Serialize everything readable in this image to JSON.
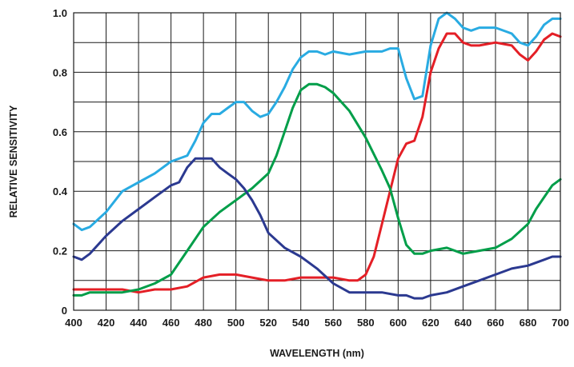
{
  "chart_data": {
    "type": "line",
    "title": "",
    "xlabel": "WAVELENGTH (nm)",
    "ylabel": "RELATIVE SENSITIVITY",
    "xlim": [
      400,
      700
    ],
    "ylim": [
      0,
      1.0
    ],
    "x_ticks": [
      "400",
      "420",
      "440",
      "460",
      "480",
      "500",
      "520",
      "540",
      "560",
      "580",
      "600",
      "620",
      "640",
      "660",
      "680",
      "700"
    ],
    "y_ticks": [
      "0",
      "0.2",
      "0.4",
      "0.6",
      "0.8",
      "1.0"
    ],
    "grid": true,
    "series": [
      {
        "color": "#29abe2",
        "x": [
          400,
          405,
          410,
          420,
          430,
          440,
          450,
          460,
          470,
          475,
          480,
          485,
          490,
          495,
          500,
          505,
          510,
          515,
          520,
          525,
          530,
          535,
          540,
          545,
          550,
          555,
          560,
          570,
          580,
          590,
          595,
          600,
          605,
          610,
          615,
          620,
          625,
          630,
          635,
          640,
          645,
          650,
          660,
          670,
          675,
          680,
          685,
          690,
          695,
          700
        ],
        "y": [
          0.29,
          0.27,
          0.28,
          0.33,
          0.4,
          0.43,
          0.46,
          0.5,
          0.52,
          0.57,
          0.63,
          0.66,
          0.66,
          0.68,
          0.7,
          0.7,
          0.67,
          0.65,
          0.66,
          0.7,
          0.75,
          0.81,
          0.85,
          0.87,
          0.87,
          0.86,
          0.87,
          0.86,
          0.87,
          0.87,
          0.88,
          0.88,
          0.78,
          0.71,
          0.72,
          0.89,
          0.98,
          1.0,
          0.98,
          0.95,
          0.94,
          0.95,
          0.95,
          0.93,
          0.9,
          0.89,
          0.92,
          0.96,
          0.98,
          0.98
        ]
      },
      {
        "color": "#e41f26",
        "x": [
          400,
          410,
          420,
          430,
          440,
          450,
          460,
          470,
          480,
          490,
          500,
          510,
          520,
          530,
          540,
          550,
          560,
          570,
          575,
          580,
          585,
          590,
          595,
          600,
          605,
          610,
          615,
          620,
          625,
          630,
          635,
          640,
          645,
          650,
          660,
          670,
          675,
          680,
          685,
          690,
          695,
          700
        ],
        "y": [
          0.07,
          0.07,
          0.07,
          0.07,
          0.06,
          0.07,
          0.07,
          0.08,
          0.11,
          0.12,
          0.12,
          0.11,
          0.1,
          0.1,
          0.11,
          0.11,
          0.11,
          0.1,
          0.1,
          0.12,
          0.18,
          0.29,
          0.4,
          0.51,
          0.56,
          0.57,
          0.65,
          0.8,
          0.88,
          0.93,
          0.93,
          0.9,
          0.89,
          0.89,
          0.9,
          0.89,
          0.86,
          0.84,
          0.87,
          0.91,
          0.93,
          0.92
        ]
      },
      {
        "color": "#009e49",
        "x": [
          400,
          405,
          410,
          420,
          430,
          440,
          450,
          460,
          470,
          480,
          490,
          500,
          510,
          520,
          525,
          530,
          535,
          540,
          545,
          550,
          555,
          560,
          570,
          580,
          590,
          595,
          600,
          605,
          610,
          615,
          620,
          630,
          640,
          650,
          660,
          670,
          680,
          685,
          690,
          695,
          700
        ],
        "y": [
          0.05,
          0.05,
          0.06,
          0.06,
          0.06,
          0.07,
          0.09,
          0.12,
          0.2,
          0.28,
          0.33,
          0.37,
          0.41,
          0.46,
          0.52,
          0.6,
          0.68,
          0.74,
          0.76,
          0.76,
          0.75,
          0.73,
          0.67,
          0.58,
          0.47,
          0.41,
          0.31,
          0.22,
          0.19,
          0.19,
          0.2,
          0.21,
          0.19,
          0.2,
          0.21,
          0.24,
          0.29,
          0.34,
          0.38,
          0.42,
          0.44
        ]
      },
      {
        "color": "#2b3990",
        "x": [
          400,
          405,
          410,
          420,
          430,
          440,
          450,
          460,
          465,
          470,
          475,
          480,
          485,
          490,
          495,
          500,
          505,
          510,
          515,
          520,
          530,
          540,
          550,
          560,
          570,
          580,
          590,
          600,
          605,
          610,
          615,
          620,
          630,
          640,
          650,
          660,
          670,
          680,
          690,
          695,
          700
        ],
        "y": [
          0.18,
          0.17,
          0.19,
          0.25,
          0.3,
          0.34,
          0.38,
          0.42,
          0.43,
          0.48,
          0.51,
          0.51,
          0.51,
          0.48,
          0.46,
          0.44,
          0.41,
          0.37,
          0.32,
          0.26,
          0.21,
          0.18,
          0.14,
          0.09,
          0.06,
          0.06,
          0.06,
          0.05,
          0.05,
          0.04,
          0.04,
          0.05,
          0.06,
          0.08,
          0.1,
          0.12,
          0.14,
          0.15,
          0.17,
          0.18,
          0.18
        ]
      }
    ]
  }
}
